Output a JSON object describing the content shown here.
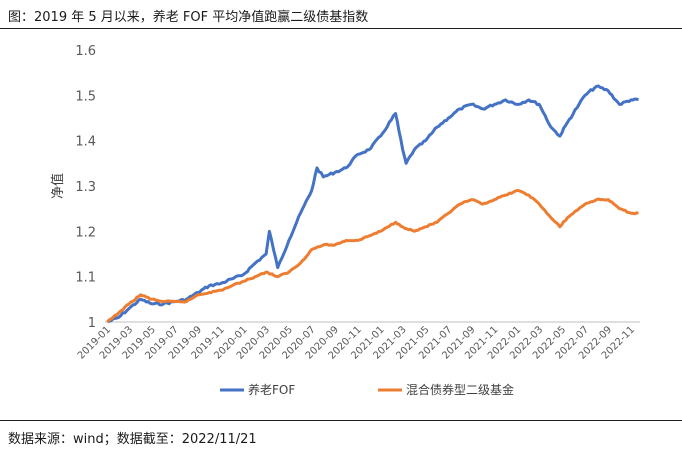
{
  "title": "图：2019 年 5 月以来，养老 FOF 平均净值跑赢二级债基指数",
  "source": "数据来源：wind；数据截至：2022/11/21",
  "chart_data": {
    "type": "line",
    "title": "图：2019 年 5 月以来，养老 FOF 平均净值跑赢二级债基指数",
    "ylabel": "净值",
    "xlabel": "",
    "ylim": [
      1,
      1.6
    ],
    "yticks": [
      "1",
      "1.1",
      "1.2",
      "1.3",
      "1.4",
      "1.5",
      "1.6"
    ],
    "x_ticks": [
      "2019-01",
      "2019-03",
      "2019-05",
      "2019-07",
      "2019-09",
      "2019-11",
      "2020-01",
      "2020-03",
      "2020-05",
      "2020-07",
      "2020-09",
      "2020-11",
      "2021-01",
      "2021-03",
      "2021-05",
      "2021-07",
      "2021-09",
      "2021-11",
      "2022-01",
      "2022-03",
      "2022-05",
      "2022-07",
      "2022-09",
      "2022-11"
    ],
    "grid": false,
    "legend_position": "bottom",
    "series": [
      {
        "name": "养老FOF",
        "color": "#4472C4",
        "points": [
          [
            "2019-01-02",
            1.0
          ],
          [
            "2019-02-01",
            1.01
          ],
          [
            "2019-03-01",
            1.03
          ],
          [
            "2019-04-01",
            1.05
          ],
          [
            "2019-05-01",
            1.04
          ],
          [
            "2019-06-01",
            1.04
          ],
          [
            "2019-07-01",
            1.045
          ],
          [
            "2019-08-01",
            1.05
          ],
          [
            "2019-09-01",
            1.065
          ],
          [
            "2019-10-01",
            1.08
          ],
          [
            "2019-11-01",
            1.085
          ],
          [
            "2019-12-01",
            1.095
          ],
          [
            "2020-01-01",
            1.105
          ],
          [
            "2020-02-01",
            1.13
          ],
          [
            "2020-03-01",
            1.15
          ],
          [
            "2020-03-10",
            1.2
          ],
          [
            "2020-04-01",
            1.12
          ],
          [
            "2020-05-01",
            1.18
          ],
          [
            "2020-06-01",
            1.24
          ],
          [
            "2020-07-01",
            1.29
          ],
          [
            "2020-07-15",
            1.34
          ],
          [
            "2020-08-01",
            1.32
          ],
          [
            "2020-09-01",
            1.33
          ],
          [
            "2020-10-01",
            1.34
          ],
          [
            "2020-11-01",
            1.37
          ],
          [
            "2020-12-01",
            1.38
          ],
          [
            "2021-01-01",
            1.41
          ],
          [
            "2021-02-10",
            1.46
          ],
          [
            "2021-03-01",
            1.38
          ],
          [
            "2021-03-10",
            1.35
          ],
          [
            "2021-04-01",
            1.38
          ],
          [
            "2021-05-01",
            1.4
          ],
          [
            "2021-06-01",
            1.43
          ],
          [
            "2021-07-01",
            1.45
          ],
          [
            "2021-08-01",
            1.47
          ],
          [
            "2021-09-01",
            1.48
          ],
          [
            "2021-10-01",
            1.47
          ],
          [
            "2021-11-01",
            1.48
          ],
          [
            "2021-12-01",
            1.49
          ],
          [
            "2022-01-01",
            1.48
          ],
          [
            "2022-02-01",
            1.49
          ],
          [
            "2022-03-01",
            1.48
          ],
          [
            "2022-04-01",
            1.43
          ],
          [
            "2022-04-25",
            1.41
          ],
          [
            "2022-05-15",
            1.44
          ],
          [
            "2022-06-15",
            1.48
          ],
          [
            "2022-07-01",
            1.5
          ],
          [
            "2022-08-01",
            1.52
          ],
          [
            "2022-09-01",
            1.51
          ],
          [
            "2022-10-01",
            1.48
          ],
          [
            "2022-11-01",
            1.49
          ],
          [
            "2022-11-21",
            1.49
          ]
        ]
      },
      {
        "name": "混合债券型二级基金",
        "color": "#ED7D31",
        "points": [
          [
            "2019-01-02",
            1.0
          ],
          [
            "2019-02-01",
            1.02
          ],
          [
            "2019-03-01",
            1.04
          ],
          [
            "2019-04-01",
            1.06
          ],
          [
            "2019-05-01",
            1.05
          ],
          [
            "2019-06-01",
            1.045
          ],
          [
            "2019-07-01",
            1.045
          ],
          [
            "2019-08-01",
            1.045
          ],
          [
            "2019-09-01",
            1.06
          ],
          [
            "2019-10-01",
            1.065
          ],
          [
            "2019-11-01",
            1.07
          ],
          [
            "2019-12-01",
            1.08
          ],
          [
            "2020-01-01",
            1.09
          ],
          [
            "2020-02-01",
            1.1
          ],
          [
            "2020-03-01",
            1.11
          ],
          [
            "2020-04-01",
            1.1
          ],
          [
            "2020-05-01",
            1.11
          ],
          [
            "2020-06-01",
            1.13
          ],
          [
            "2020-07-01",
            1.16
          ],
          [
            "2020-08-01",
            1.17
          ],
          [
            "2020-09-01",
            1.17
          ],
          [
            "2020-10-01",
            1.18
          ],
          [
            "2020-11-01",
            1.18
          ],
          [
            "2020-12-01",
            1.19
          ],
          [
            "2021-01-01",
            1.2
          ],
          [
            "2021-02-10",
            1.22
          ],
          [
            "2021-03-01",
            1.21
          ],
          [
            "2021-04-01",
            1.2
          ],
          [
            "2021-05-01",
            1.21
          ],
          [
            "2021-06-01",
            1.22
          ],
          [
            "2021-07-01",
            1.24
          ],
          [
            "2021-08-01",
            1.26
          ],
          [
            "2021-09-01",
            1.27
          ],
          [
            "2021-10-01",
            1.26
          ],
          [
            "2021-11-01",
            1.27
          ],
          [
            "2021-12-01",
            1.28
          ],
          [
            "2022-01-01",
            1.29
          ],
          [
            "2022-02-01",
            1.28
          ],
          [
            "2022-03-01",
            1.26
          ],
          [
            "2022-04-01",
            1.23
          ],
          [
            "2022-04-25",
            1.21
          ],
          [
            "2022-05-15",
            1.23
          ],
          [
            "2022-06-15",
            1.25
          ],
          [
            "2022-07-01",
            1.26
          ],
          [
            "2022-08-01",
            1.27
          ],
          [
            "2022-09-01",
            1.27
          ],
          [
            "2022-10-01",
            1.25
          ],
          [
            "2022-11-01",
            1.24
          ],
          [
            "2022-11-21",
            1.24
          ]
        ]
      }
    ]
  }
}
